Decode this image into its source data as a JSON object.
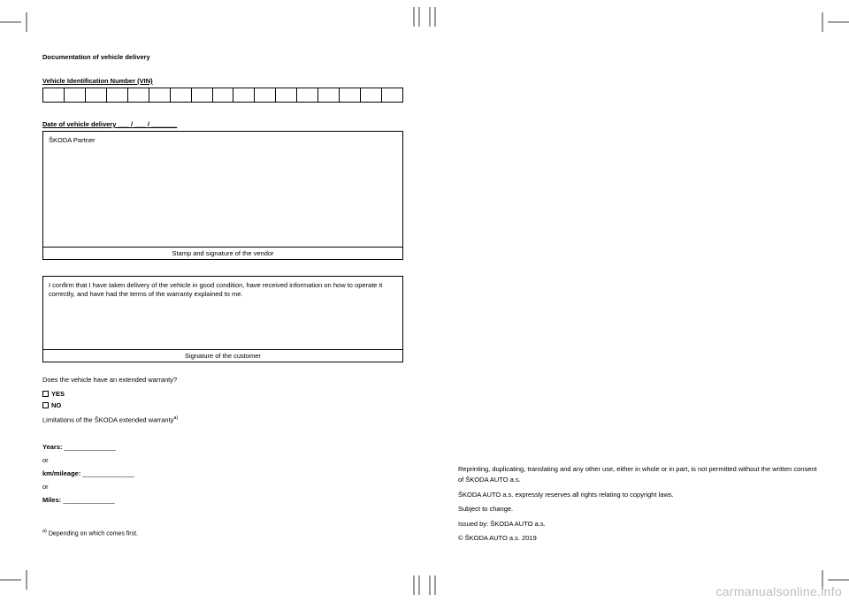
{
  "doc": {
    "title": "Documentation of vehicle delivery",
    "vin_label": "Vehicle Identification Number (VIN)",
    "vin_cell_count": 17,
    "delivery_date_label": "Date of vehicle delivery ___ / ___ / _______",
    "partner_box": {
      "body": "ŠKODA Partner",
      "footer": "Stamp and signature of the vendor"
    },
    "customer_box": {
      "body": "I confirm that I have taken delivery of the vehicle in good condition, have received information on how to operate it correctly, and have had the terms of the warranty explained to me.",
      "footer": "Signature of the customer"
    },
    "ext_warranty_q": "Does the vehicle have an extended warranty?",
    "opt_yes": "YES",
    "opt_no": "NO",
    "limitations_line": "Limitations of the ŠKODA extended warranty",
    "limitations_sup": "a)",
    "years_label": "Years:",
    "years_blank": "  ______________",
    "or": "or",
    "km_label": "km/mileage:",
    "km_blank": "  ______________",
    "miles_label": "Miles:",
    "miles_blank": "  ______________",
    "footnote_sup": "a)",
    "footnote_text": " Depending on which comes first."
  },
  "copyright": {
    "l1": "Reprinting, duplicating, translating and any other use, either in whole or in part, is not permitted without the written consent of ŠKODA AUTO a.s.",
    "l2": "ŠKODA AUTO a.s. expressly reserves all rights relating to copyright laws.",
    "l3": "Subject to change.",
    "l4": "Issued by: ŠKODA AUTO a.s.",
    "l5": "© ŠKODA AUTO a.s. 2019"
  },
  "watermark": "carmanualsonline.info"
}
